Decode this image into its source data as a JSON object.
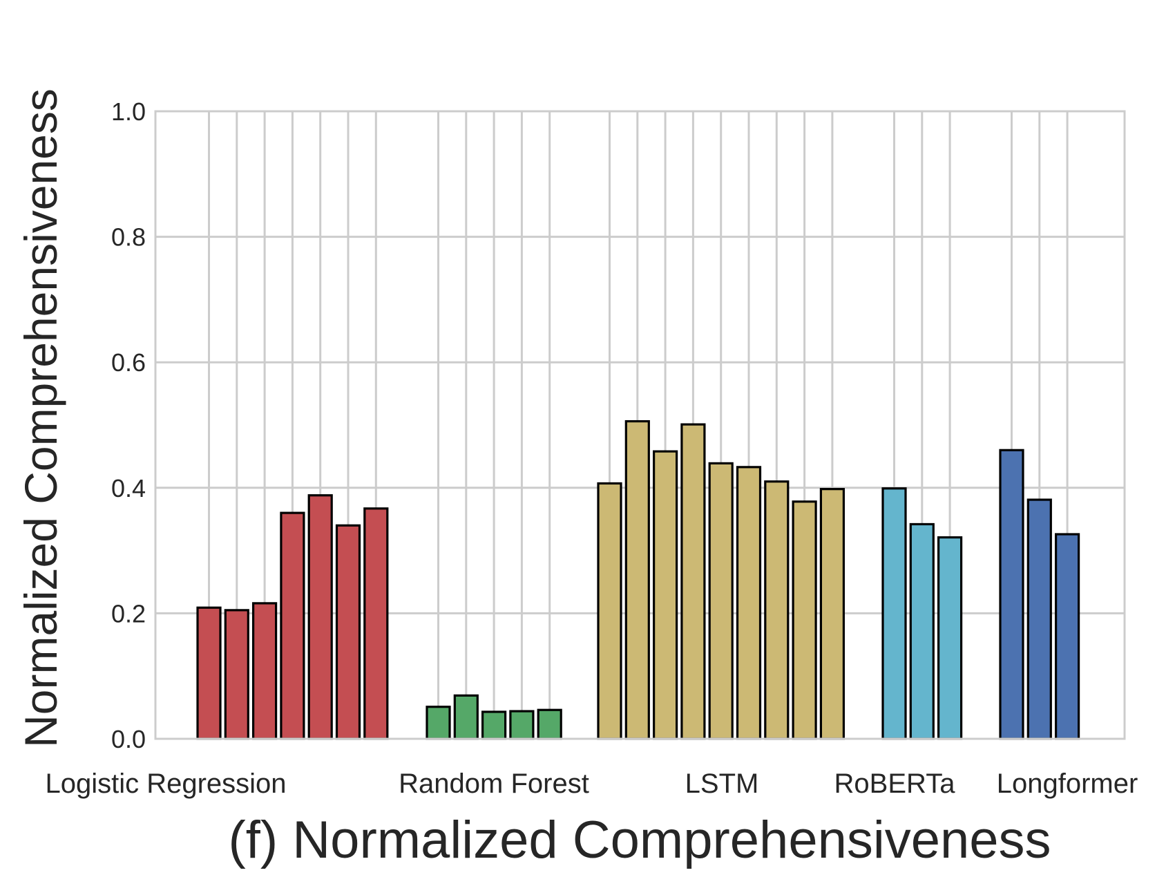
{
  "chart_data": {
    "type": "bar",
    "title": "",
    "xlabel": "(f) Normalized Comprehensiveness",
    "ylabel": "Normalized Comprehensiveness",
    "ylim": [
      0,
      1.0
    ],
    "yticks": [
      "0.0",
      "0.2",
      "0.4",
      "0.6",
      "0.8",
      "1.0"
    ],
    "grid": true,
    "legend": "none",
    "groups": [
      {
        "category": "Logistic Regression",
        "color": "#c44e52",
        "values": [
          0.209,
          0.205,
          0.216,
          0.36,
          0.388,
          0.34,
          0.367
        ]
      },
      {
        "category": "Random Forest",
        "color": "#55a868",
        "values": [
          0.051,
          0.069,
          0.043,
          0.044,
          0.046
        ]
      },
      {
        "category": "LSTM",
        "color": "#ccb974",
        "values": [
          0.407,
          0.506,
          0.458,
          0.501,
          0.439,
          0.433,
          0.41,
          0.378,
          0.398
        ]
      },
      {
        "category": "RoBERTa",
        "color": "#64b5cd",
        "values": [
          0.399,
          0.342,
          0.321
        ]
      },
      {
        "category": "Longformer",
        "color": "#4c72b0",
        "values": [
          0.46,
          0.381,
          0.326
        ]
      }
    ]
  }
}
